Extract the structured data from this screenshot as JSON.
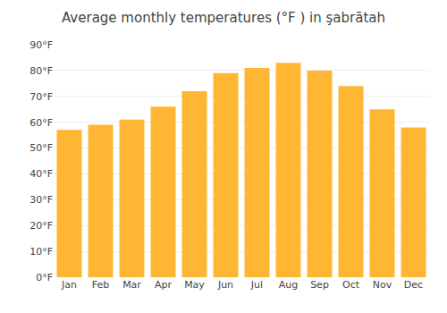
{
  "chart_data": {
    "type": "bar",
    "title": "Average monthly temperatures (°F ) in şabrātah",
    "categories": [
      "Jan",
      "Feb",
      "Mar",
      "Apr",
      "May",
      "Jun",
      "Jul",
      "Aug",
      "Sep",
      "Oct",
      "Nov",
      "Dec"
    ],
    "values": [
      57,
      59,
      61,
      66,
      72,
      79,
      81,
      83,
      80,
      74,
      65,
      58
    ],
    "color": "#FFB733",
    "ylim": [
      0,
      90
    ],
    "yticks": [
      {
        "value": 0,
        "label": "0°F"
      },
      {
        "value": 10,
        "label": "10°F"
      },
      {
        "value": 20,
        "label": "20°F"
      },
      {
        "value": 30,
        "label": "30°F"
      },
      {
        "value": 40,
        "label": "40°F"
      },
      {
        "value": 50,
        "label": "50°F"
      },
      {
        "value": 60,
        "label": "60°F"
      },
      {
        "value": 70,
        "label": "70°F"
      },
      {
        "value": 80,
        "label": "80°F"
      },
      {
        "value": 90,
        "label": "90°F"
      }
    ],
    "grid": true
  }
}
